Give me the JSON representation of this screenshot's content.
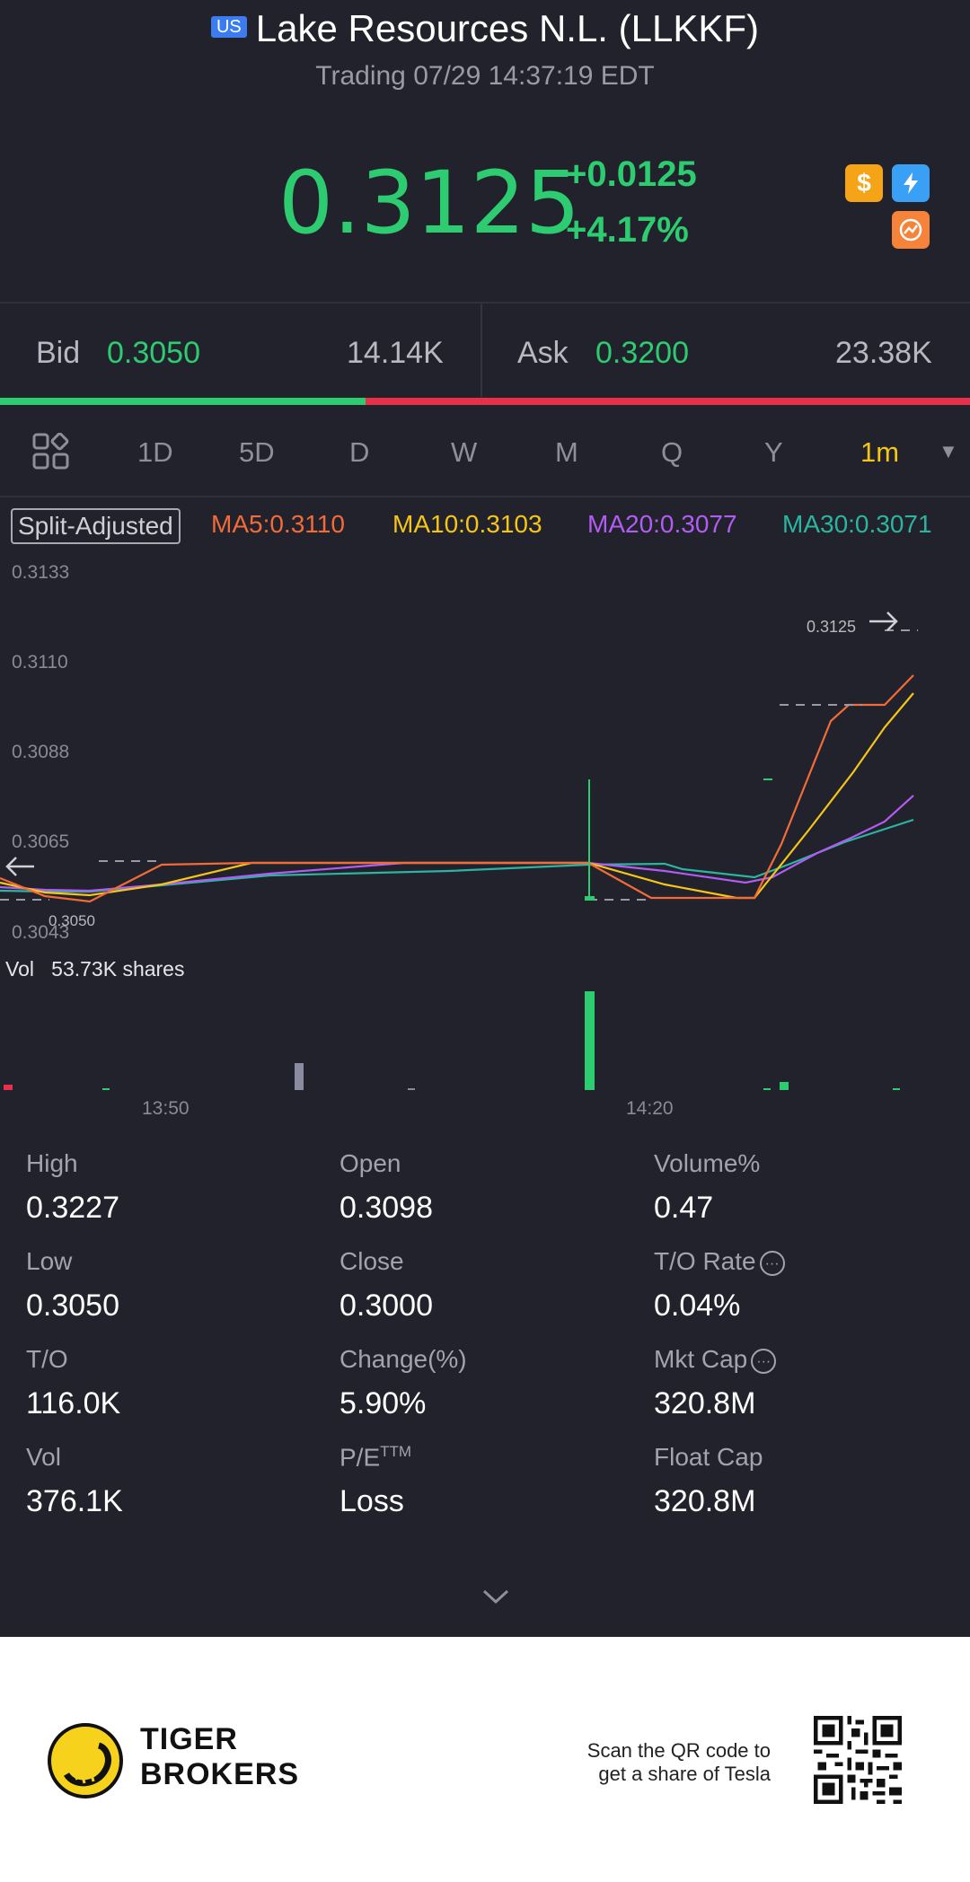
{
  "header": {
    "market_badge": "US",
    "title": "Lake Resources N.L. (LLKKF)",
    "subtitle": "Trading 07/29 14:37:19 EDT"
  },
  "quote": {
    "price": "0.3125",
    "change": "+0.0125",
    "change_pct": "+4.17%",
    "up_color": "#2ecc71",
    "down_color": "#e8304a",
    "icons": [
      "dollar-icon",
      "flash-icon",
      "chart-alert-icon"
    ]
  },
  "bid_ask": {
    "bid_label": "Bid",
    "bid_price": "0.3050",
    "bid_size": "14.14K",
    "ask_label": "Ask",
    "ask_price": "0.3200",
    "ask_size": "23.38K",
    "bid_share": 0.377
  },
  "periods": {
    "tabs": [
      "1D",
      "5D",
      "D",
      "W",
      "M",
      "Q",
      "Y"
    ],
    "active": "1m"
  },
  "indicators": {
    "split_label": "Split-Adjusted",
    "ma5": "MA5:0.3110",
    "ma10": "MA10:0.3103",
    "ma20": "MA20:0.3077",
    "ma30": "MA30:0.3071",
    "ma5_color": "#f26b38",
    "ma10_color": "#f5c518",
    "ma20_color": "#b15cf2",
    "ma30_color": "#2bb5a0"
  },
  "chart": {
    "y_ticks": [
      "0.3133",
      "0.3110",
      "0.3088",
      "0.3065",
      "0.3043"
    ],
    "x_ticks": [
      "13:50",
      "14:20"
    ],
    "last_price_tag": "0.3125",
    "low_price_tag": "0.3050",
    "vol_label": "Vol",
    "vol_value": "53.73K shares"
  },
  "stats": [
    {
      "label": "High",
      "value": "0.3227"
    },
    {
      "label": "Open",
      "value": "0.3098"
    },
    {
      "label": "Volume%",
      "value": "0.47"
    },
    {
      "label": "Low",
      "value": "0.3050"
    },
    {
      "label": "Close",
      "value": "0.3000"
    },
    {
      "label": "T/O Rate",
      "value": "0.04%"
    },
    {
      "label": "T/O",
      "value": "116.0K"
    },
    {
      "label": "Change(%)",
      "value": "5.90%"
    },
    {
      "label": "Mkt Cap",
      "value": "320.8M"
    },
    {
      "label": "Vol",
      "value": "376.1K"
    },
    {
      "label": "P/E",
      "sup": "TTM",
      "value": "Loss"
    },
    {
      "label": "Float Cap",
      "value": "320.8M"
    }
  ],
  "footer": {
    "brand_line1": "TIGER",
    "brand_line2": "BROKERS",
    "qr_line1": "Scan the QR code to",
    "qr_line2": "get a share of Tesla"
  }
}
